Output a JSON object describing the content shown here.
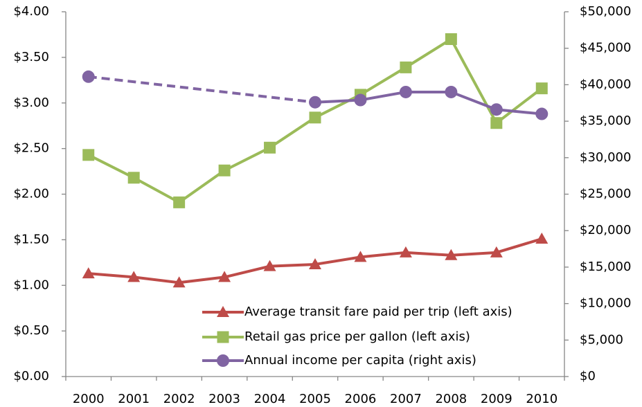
{
  "chart_data": {
    "type": "line",
    "categories": [
      "2000",
      "2001",
      "2002",
      "2003",
      "2004",
      "2005",
      "2006",
      "2007",
      "2008",
      "2009",
      "2010"
    ],
    "series": [
      {
        "name": "Average transit fare paid per trip (left axis)",
        "color": "#be4b48",
        "marker": "triangle",
        "axis": "y",
        "values": [
          1.13,
          1.09,
          1.03,
          1.09,
          1.21,
          1.23,
          1.31,
          1.36,
          1.33,
          1.36,
          1.51
        ]
      },
      {
        "name": "Retail gas price per gallon (left axis)",
        "color": "#9bbb59",
        "marker": "square",
        "axis": "y",
        "values": [
          2.43,
          2.18,
          1.91,
          2.26,
          2.51,
          2.84,
          3.09,
          3.39,
          3.7,
          2.78,
          3.16
        ]
      },
      {
        "name": "Annual income per capita (right axis)",
        "color": "#8064a2",
        "marker": "circle",
        "axis": "y2",
        "gap_style": "dashed",
        "values": [
          41100,
          null,
          null,
          null,
          null,
          37600,
          37900,
          39000,
          39000,
          36600,
          36000
        ]
      }
    ],
    "ylim": [
      0,
      4
    ],
    "yticks": [
      {
        "value": 0,
        "label": "$0.00"
      },
      {
        "value": 0.5,
        "label": "$0.50"
      },
      {
        "value": 1,
        "label": "$1.00"
      },
      {
        "value": 1.5,
        "label": "$1.50"
      },
      {
        "value": 2,
        "label": "$2.00"
      },
      {
        "value": 2.5,
        "label": "$2.50"
      },
      {
        "value": 3,
        "label": "$3.00"
      },
      {
        "value": 3.5,
        "label": "$3.50"
      },
      {
        "value": 4,
        "label": "$4.00"
      }
    ],
    "y2lim": [
      0,
      50000
    ],
    "y2ticks": [
      {
        "value": 0,
        "label": "$0"
      },
      {
        "value": 5000,
        "label": "$5,000"
      },
      {
        "value": 10000,
        "label": "$10,000"
      },
      {
        "value": 15000,
        "label": "$15,000"
      },
      {
        "value": 20000,
        "label": "$20,000"
      },
      {
        "value": 25000,
        "label": "$25,000"
      },
      {
        "value": 30000,
        "label": "$30,000"
      },
      {
        "value": 35000,
        "label": "$35,000"
      },
      {
        "value": 40000,
        "label": "$40,000"
      },
      {
        "value": 45000,
        "label": "$45,000"
      },
      {
        "value": 50000,
        "label": "$50,000"
      }
    ],
    "grid": false,
    "legend": "lower right"
  }
}
